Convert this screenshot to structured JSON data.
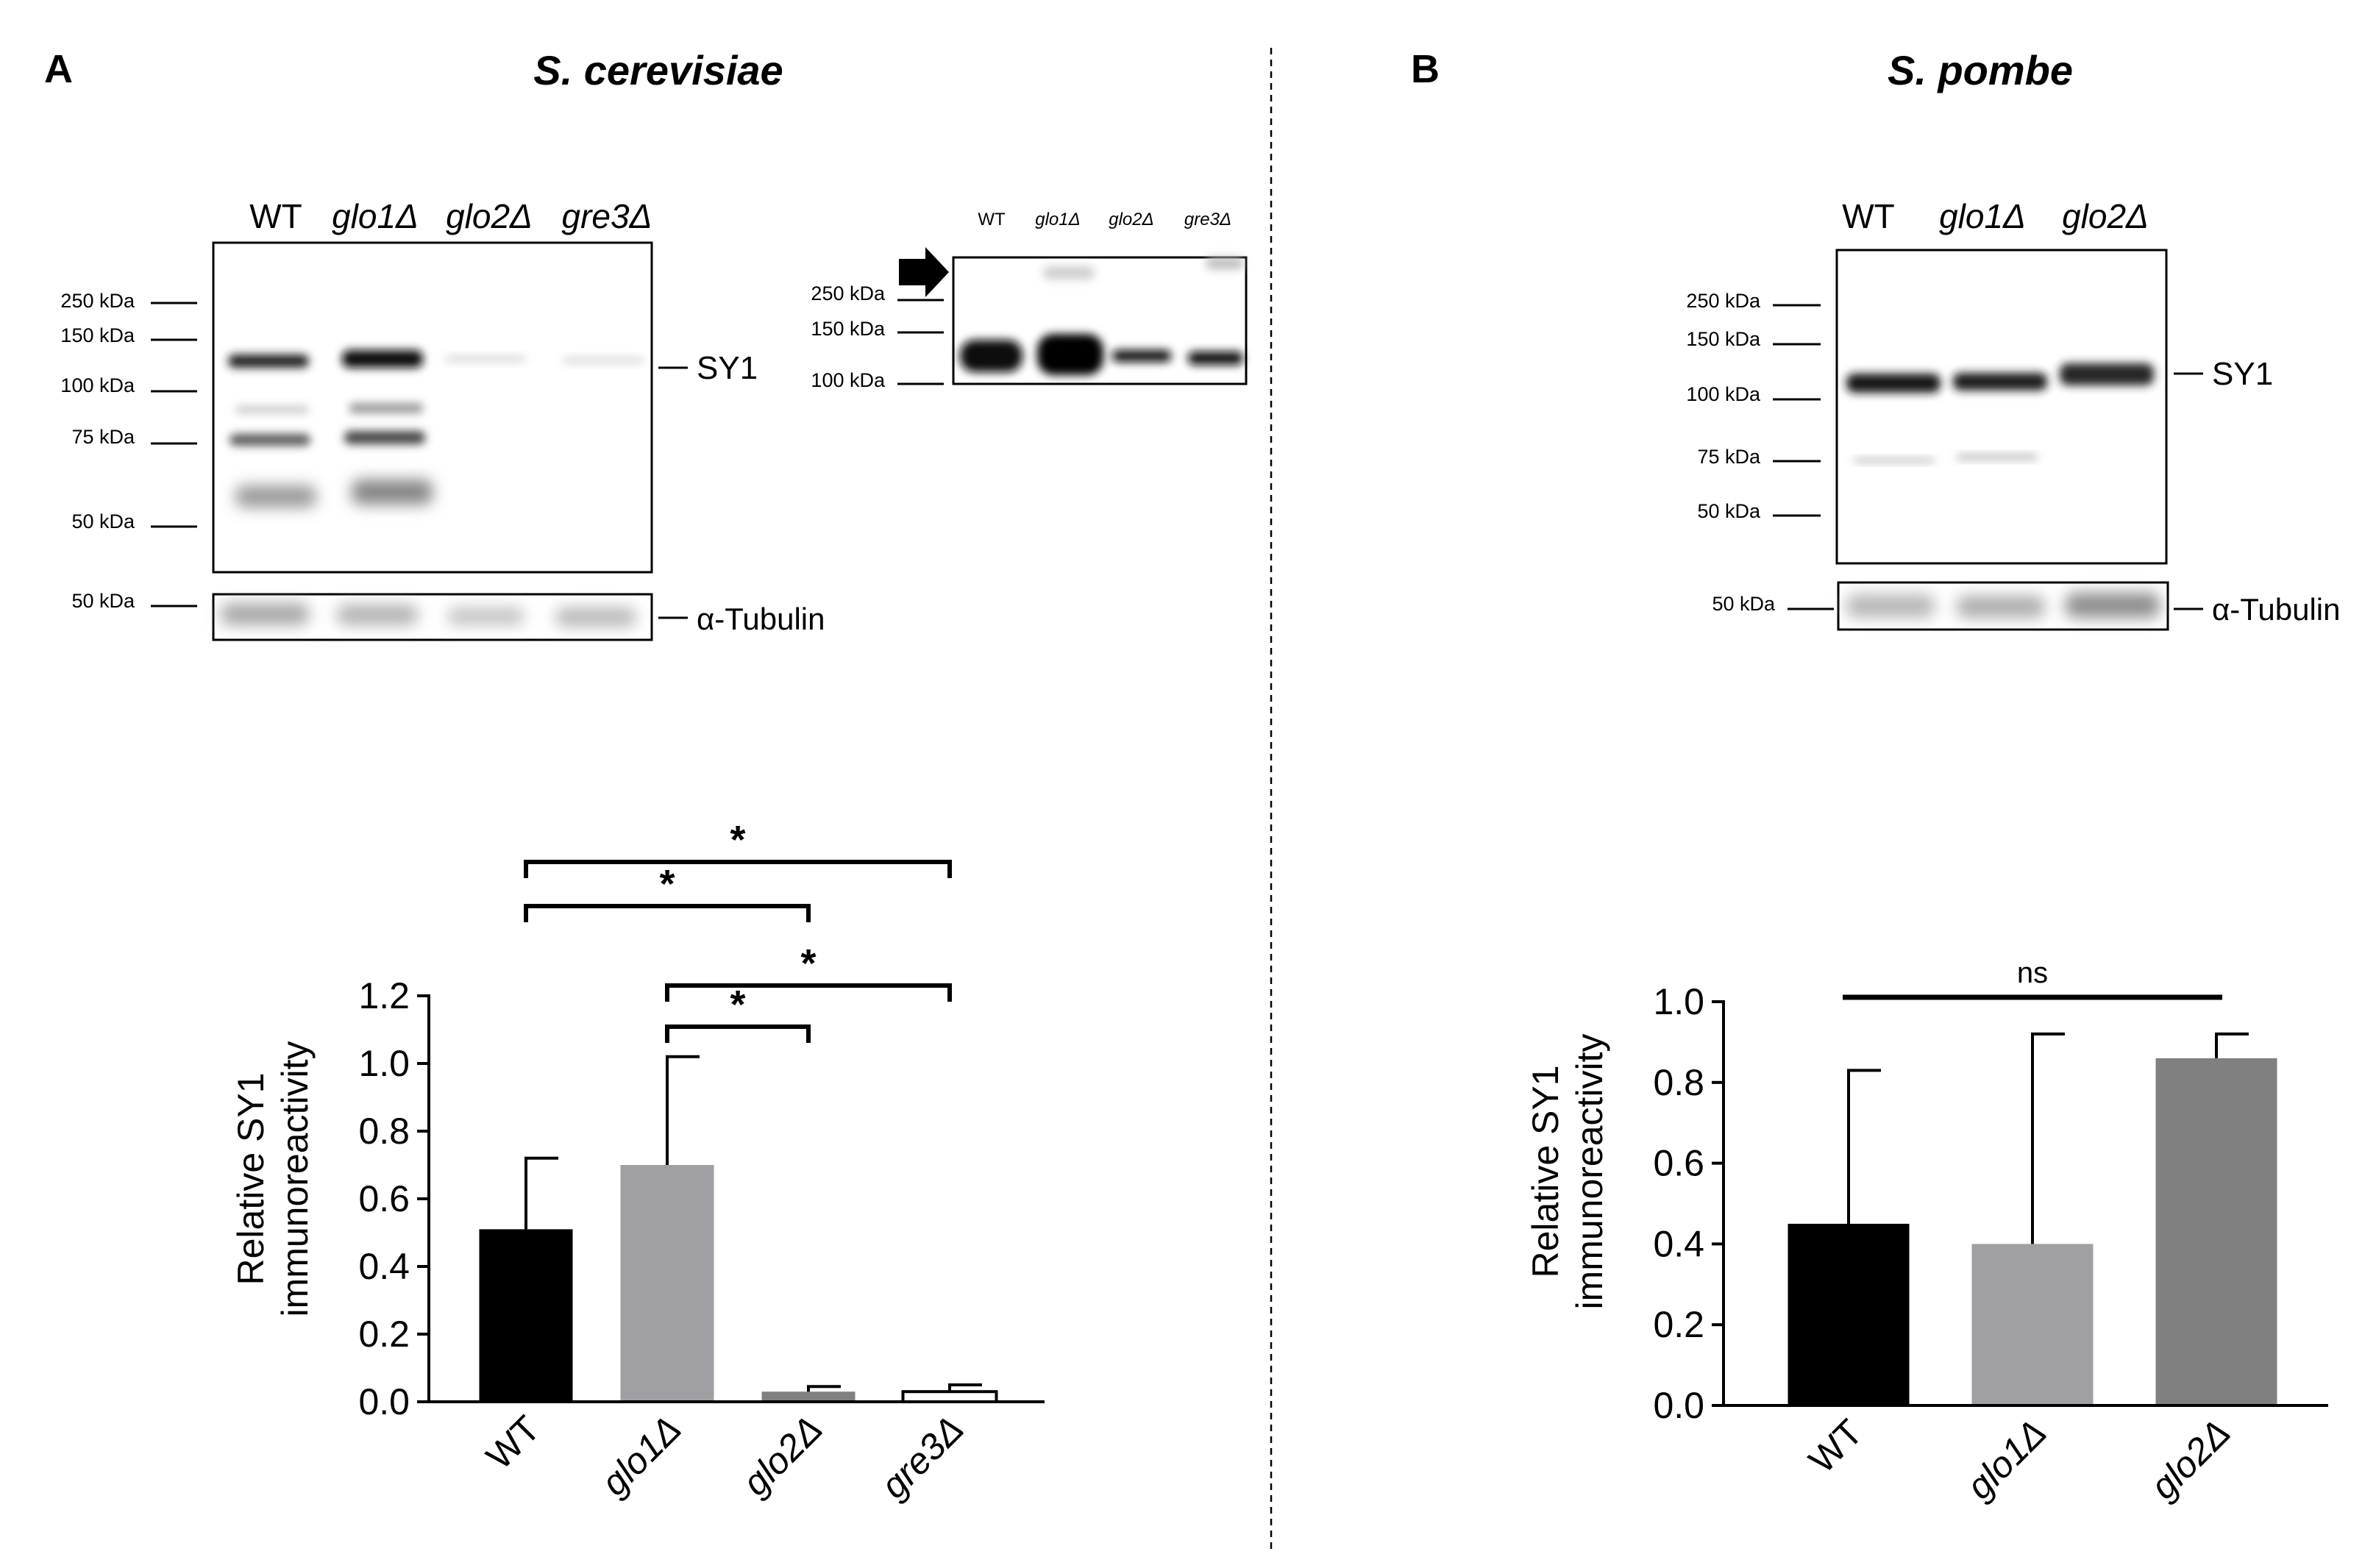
{
  "panels": [
    {
      "label": "A",
      "organism": "S. cerevisiae",
      "blot": {
        "lanes": [
          "WT",
          "glo1Δ",
          "glo2Δ",
          "gre3Δ"
        ],
        "markers": [
          "250 kDa",
          "150 kDa",
          "100 kDa",
          "75 kDa",
          "50 kDa"
        ],
        "band_label": "SY1",
        "loading_marker": "50 kDa",
        "loading_label": "α-Tubulin",
        "inset": {
          "lanes": [
            "WT",
            "glo1Δ",
            "glo2Δ",
            "gre3Δ"
          ],
          "markers": [
            "250 kDa",
            "150 kDa",
            "100 kDa"
          ]
        }
      }
    },
    {
      "label": "B",
      "organism": "S. pombe",
      "blot": {
        "lanes": [
          "WT",
          "glo1Δ",
          "glo2Δ"
        ],
        "markers": [
          "250 kDa",
          "150 kDa",
          "100 kDa",
          "75 kDa",
          "50 kDa"
        ],
        "band_label": "SY1",
        "loading_marker": "50 kDa",
        "loading_label": "α-Tubulin"
      }
    }
  ],
  "colors": {
    "wt": "#000000",
    "glo1": "#a0a0a4",
    "glo2": "#808080",
    "gre3": "#ffffff"
  },
  "chart_data": [
    {
      "type": "bar",
      "panel": "A",
      "categories": [
        "WT",
        "glo1Δ",
        "glo2Δ",
        "gre3Δ"
      ],
      "values": [
        0.51,
        0.7,
        0.03,
        0.03
      ],
      "errors": [
        0.21,
        0.32,
        0.015,
        0.02
      ],
      "ylabel": "Relative SY1 immunoreactivity",
      "ylim": [
        0,
        1.2
      ],
      "yticks": [
        "0.0",
        "0.2",
        "0.4",
        "0.6",
        "0.8",
        "1.0",
        "1.2"
      ],
      "significance": [
        {
          "from": "WT",
          "to": "gre3Δ",
          "label": "*"
        },
        {
          "from": "WT",
          "to": "glo2Δ",
          "label": "*"
        },
        {
          "from": "glo1Δ",
          "to": "gre3Δ",
          "label": "*"
        },
        {
          "from": "glo1Δ",
          "to": "glo2Δ",
          "label": "*"
        }
      ]
    },
    {
      "type": "bar",
      "panel": "B",
      "categories": [
        "WT",
        "glo1Δ",
        "glo2Δ"
      ],
      "values": [
        0.45,
        0.4,
        0.86
      ],
      "errors": [
        0.38,
        0.52,
        0.06
      ],
      "ylabel": "Relative SY1 immunoreactivity",
      "ylim": [
        0,
        1.0
      ],
      "yticks": [
        "0.0",
        "0.2",
        "0.4",
        "0.6",
        "0.8",
        "1.0"
      ],
      "significance": [
        {
          "from": "WT",
          "to": "glo2Δ",
          "label": "ns"
        }
      ]
    }
  ]
}
